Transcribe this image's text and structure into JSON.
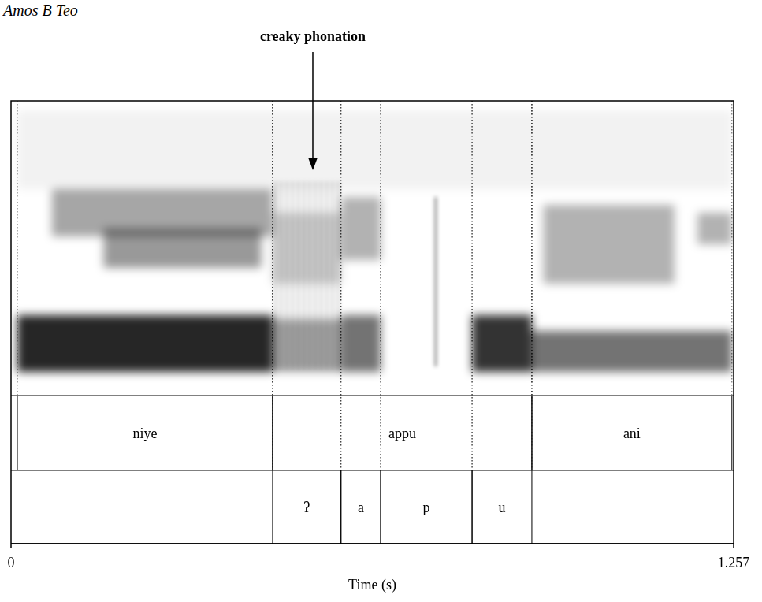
{
  "chart_data": {
    "type": "spectrogram",
    "header": "Amos B Teo",
    "x_label": "Time (s)",
    "xlim": [
      0,
      1.257
    ],
    "xticks": [
      0,
      1.257
    ],
    "annotations": [
      {
        "text": "creaky phonation",
        "time": 0.525
      }
    ],
    "tiers": [
      {
        "intervals": [
          {
            "label": "niye",
            "start": 0.011,
            "end": 0.455
          },
          {
            "label": "appu",
            "start": 0.455,
            "end": 0.906
          },
          {
            "label": "ani",
            "start": 0.906,
            "end": 1.254
          }
        ]
      },
      {
        "intervals": [
          {
            "label": "ʔ",
            "start": 0.455,
            "end": 0.574
          },
          {
            "label": "a",
            "start": 0.574,
            "end": 0.643
          },
          {
            "label": "p",
            "start": 0.643,
            "end": 0.802
          },
          {
            "label": "u",
            "start": 0.802,
            "end": 0.906
          }
        ]
      }
    ]
  }
}
